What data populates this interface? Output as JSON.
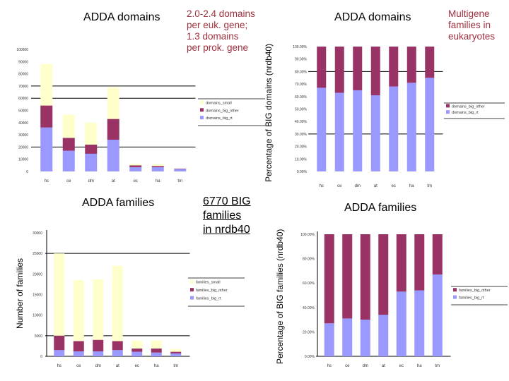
{
  "annotations": {
    "domains_note": [
      "2.0-2.4 domains",
      "per euk. gene;",
      "1.3 domains",
      "per prok. gene"
    ],
    "families_note": [
      "6770 BIG",
      "families",
      "in nrdb40"
    ],
    "multigene_note": [
      "Multigene",
      "families in",
      "eukaryotes"
    ]
  },
  "colors": {
    "small": "#ffffcc",
    "big_other": "#993366",
    "big_single": "#9999ff",
    "note": "#a0303c"
  },
  "chart_data": [
    {
      "id": "domains-count",
      "type": "bar",
      "stacked": true,
      "title": "ADDA domains",
      "xlabel": "",
      "ylabel": "",
      "categories": [
        "hs",
        "ce",
        "dm",
        "at",
        "ec",
        "ha",
        "tm"
      ],
      "ylim": [
        0,
        100000
      ],
      "yticks": [
        0,
        10000,
        20000,
        30000,
        40000,
        50000,
        60000,
        70000,
        80000,
        90000,
        100000
      ],
      "series": [
        {
          "name": "domains_big_rt",
          "color_key": "big_single",
          "values": [
            36000,
            17000,
            14500,
            26000,
            3500,
            3500,
            2000
          ]
        },
        {
          "name": "domains_big_other",
          "color_key": "big_other",
          "values": [
            18000,
            10500,
            7500,
            17000,
            1500,
            1000,
            300
          ]
        },
        {
          "name": "domains_small",
          "color_key": "small",
          "values": [
            34000,
            19000,
            18000,
            26000,
            1500,
            1500,
            200
          ]
        }
      ],
      "legend": [
        "domains_small",
        "domains_big_other",
        "domains_big_rt"
      ],
      "legend_position": "right"
    },
    {
      "id": "domains-pct",
      "type": "bar",
      "stacked": true,
      "percent": true,
      "title": "ADDA domains",
      "xlabel": "",
      "ylabel": "Percentage of BIG domains (nrdb40)",
      "categories": [
        "hs",
        "ce",
        "dm",
        "at",
        "ec",
        "ha",
        "tm"
      ],
      "ylim": [
        0,
        100
      ],
      "yticks": [
        "0.00%",
        "10.00%",
        "20.00%",
        "30.00%",
        "40.00%",
        "50.00%",
        "60.00%",
        "70.00%",
        "80.00%",
        "90.00%",
        "100.00%"
      ],
      "series": [
        {
          "name": "domains_big_rt",
          "color_key": "big_single",
          "values": [
            67,
            63,
            65,
            61,
            68,
            71,
            75
          ]
        },
        {
          "name": "domains_big_other",
          "color_key": "big_other",
          "values": [
            33,
            37,
            35,
            39,
            32,
            29,
            25
          ]
        }
      ],
      "legend": [
        "domains_big_other",
        "domains_big_rt"
      ],
      "legend_position": "right"
    },
    {
      "id": "families-count",
      "type": "bar",
      "stacked": true,
      "title": "ADDA families",
      "xlabel": "",
      "ylabel": "Number of families",
      "categories": [
        "hs",
        "ce",
        "dm",
        "at",
        "ec",
        "ha",
        "tm"
      ],
      "ylim": [
        0,
        30000
      ],
      "yticks": [
        0,
        5000,
        10000,
        15000,
        20000,
        25000,
        30000
      ],
      "series": [
        {
          "name": "families_big_rt",
          "color_key": "big_single",
          "values": [
            1500,
            1200,
            1200,
            1500,
            1100,
            900,
            700
          ]
        },
        {
          "name": "families_big_other",
          "color_key": "big_other",
          "values": [
            3500,
            2500,
            2800,
            2200,
            800,
            1000,
            400
          ]
        },
        {
          "name": "families_small",
          "color_key": "small",
          "values": [
            20000,
            14800,
            14700,
            18300,
            1900,
            1900,
            700
          ]
        }
      ],
      "legend": [
        "families_small",
        "families_big_other",
        "families_big_rt"
      ],
      "legend_position": "right"
    },
    {
      "id": "families-pct",
      "type": "bar",
      "stacked": true,
      "percent": true,
      "title": "ADDA families",
      "xlabel": "",
      "ylabel": "Percentage of BIG families (nrdb40)",
      "categories": [
        "hs",
        "ce",
        "dm",
        "at",
        "ec",
        "ha",
        "tm"
      ],
      "ylim": [
        0,
        100
      ],
      "yticks": [
        "0.00%",
        "20.00%",
        "40.00%",
        "60.00%",
        "80.00%",
        "100.00%"
      ],
      "series": [
        {
          "name": "families_big_rt",
          "color_key": "big_single",
          "values": [
            27,
            31,
            30,
            34,
            53,
            54,
            67
          ]
        },
        {
          "name": "families_big_other",
          "color_key": "big_other",
          "values": [
            73,
            69,
            70,
            66,
            47,
            46,
            33
          ]
        }
      ],
      "legend": [
        "families_big_other",
        "families_big_rt"
      ],
      "legend_position": "right"
    }
  ]
}
